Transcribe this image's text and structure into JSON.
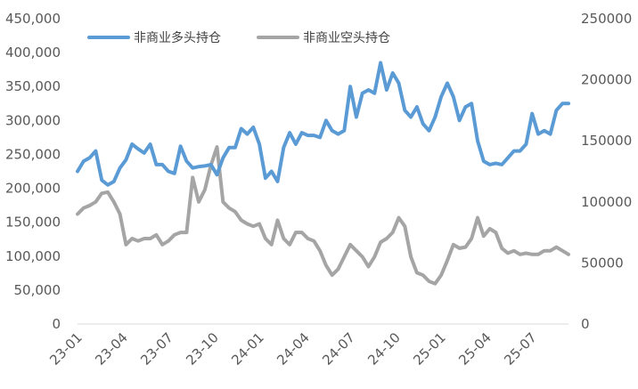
{
  "chart_data": {
    "type": "line",
    "title": "",
    "xlabel": "",
    "ylabel": "",
    "x_tick_labels": [
      "23-01",
      "23-04",
      "23-07",
      "23-10",
      "24-01",
      "24-04",
      "24-07",
      "24-10",
      "25-01",
      "25-04",
      "25-07"
    ],
    "y_left": {
      "range": [
        0,
        450000
      ],
      "ticks": [
        "0",
        "50,000",
        "100,000",
        "150,000",
        "200,000",
        "250,000",
        "300,000",
        "350,000",
        "400,000",
        "450,000"
      ]
    },
    "y_right": {
      "range": [
        0,
        250000
      ],
      "ticks": [
        "0",
        "50000",
        "100000",
        "150000",
        "200000",
        "250000"
      ]
    },
    "grid": false,
    "legend_position": "top-left",
    "series": [
      {
        "name": "非商业多头持仓",
        "axis": "left",
        "color": "#5B9BD5",
        "points": [
          [
            0,
            225000
          ],
          [
            1,
            240000
          ],
          [
            2,
            245000
          ],
          [
            3,
            255000
          ],
          [
            4,
            212000
          ],
          [
            5,
            205000
          ],
          [
            6,
            210000
          ],
          [
            7,
            230000
          ],
          [
            8,
            242000
          ],
          [
            9,
            265000
          ],
          [
            10,
            258000
          ],
          [
            11,
            252000
          ],
          [
            12,
            265000
          ],
          [
            13,
            235000
          ],
          [
            14,
            235000
          ],
          [
            15,
            225000
          ],
          [
            16,
            222000
          ],
          [
            17,
            262000
          ],
          [
            18,
            240000
          ],
          [
            19,
            230000
          ],
          [
            20,
            232000
          ],
          [
            21,
            233000
          ],
          [
            22,
            235000
          ],
          [
            23,
            220000
          ],
          [
            24,
            245000
          ],
          [
            25,
            260000
          ],
          [
            26,
            260000
          ],
          [
            27,
            288000
          ],
          [
            28,
            280000
          ],
          [
            29,
            290000
          ],
          [
            30,
            265000
          ],
          [
            31,
            215000
          ],
          [
            32,
            225000
          ],
          [
            33,
            210000
          ],
          [
            34,
            260000
          ],
          [
            35,
            282000
          ],
          [
            36,
            265000
          ],
          [
            37,
            282000
          ],
          [
            38,
            278000
          ],
          [
            39,
            278000
          ],
          [
            40,
            275000
          ],
          [
            41,
            300000
          ],
          [
            42,
            285000
          ],
          [
            43,
            280000
          ],
          [
            44,
            285000
          ],
          [
            45,
            350000
          ],
          [
            46,
            305000
          ],
          [
            47,
            340000
          ],
          [
            48,
            345000
          ],
          [
            49,
            340000
          ],
          [
            50,
            385000
          ],
          [
            51,
            345000
          ],
          [
            52,
            370000
          ],
          [
            53,
            355000
          ],
          [
            54,
            315000
          ],
          [
            55,
            305000
          ],
          [
            56,
            320000
          ],
          [
            57,
            295000
          ],
          [
            58,
            285000
          ],
          [
            59,
            305000
          ],
          [
            60,
            335000
          ],
          [
            61,
            355000
          ],
          [
            62,
            335000
          ],
          [
            63,
            300000
          ],
          [
            64,
            320000
          ],
          [
            65,
            325000
          ],
          [
            66,
            270000
          ],
          [
            67,
            240000
          ],
          [
            68,
            235000
          ],
          [
            69,
            237000
          ],
          [
            70,
            235000
          ],
          [
            71,
            245000
          ],
          [
            72,
            255000
          ],
          [
            73,
            255000
          ],
          [
            74,
            265000
          ],
          [
            75,
            310000
          ],
          [
            76,
            280000
          ],
          [
            77,
            285000
          ],
          [
            78,
            280000
          ],
          [
            79,
            315000
          ],
          [
            80,
            325000
          ],
          [
            81,
            325000
          ]
        ]
      },
      {
        "name": "非商业空头持仓",
        "axis": "right",
        "color": "#A5A5A5",
        "points": [
          [
            0,
            90000
          ],
          [
            1,
            95000
          ],
          [
            2,
            97000
          ],
          [
            3,
            100000
          ],
          [
            4,
            107000
          ],
          [
            5,
            108000
          ],
          [
            6,
            100000
          ],
          [
            7,
            90000
          ],
          [
            8,
            65000
          ],
          [
            9,
            70000
          ],
          [
            10,
            68000
          ],
          [
            11,
            70000
          ],
          [
            12,
            70000
          ],
          [
            13,
            73000
          ],
          [
            14,
            65000
          ],
          [
            15,
            68000
          ],
          [
            16,
            73000
          ],
          [
            17,
            75000
          ],
          [
            18,
            75000
          ],
          [
            19,
            120000
          ],
          [
            20,
            100000
          ],
          [
            21,
            110000
          ],
          [
            22,
            130000
          ],
          [
            23,
            145000
          ],
          [
            24,
            100000
          ],
          [
            25,
            95000
          ],
          [
            26,
            92000
          ],
          [
            27,
            85000
          ],
          [
            28,
            82000
          ],
          [
            29,
            80000
          ],
          [
            30,
            82000
          ],
          [
            31,
            70000
          ],
          [
            32,
            65000
          ],
          [
            33,
            85000
          ],
          [
            34,
            70000
          ],
          [
            35,
            65000
          ],
          [
            36,
            75000
          ],
          [
            37,
            75000
          ],
          [
            38,
            70000
          ],
          [
            39,
            68000
          ],
          [
            40,
            60000
          ],
          [
            41,
            48000
          ],
          [
            42,
            40000
          ],
          [
            43,
            45000
          ],
          [
            44,
            55000
          ],
          [
            45,
            65000
          ],
          [
            46,
            60000
          ],
          [
            47,
            55000
          ],
          [
            48,
            47000
          ],
          [
            49,
            55000
          ],
          [
            50,
            67000
          ],
          [
            51,
            70000
          ],
          [
            52,
            75000
          ],
          [
            53,
            87000
          ],
          [
            54,
            80000
          ],
          [
            55,
            55000
          ],
          [
            56,
            42000
          ],
          [
            57,
            40000
          ],
          [
            58,
            35000
          ],
          [
            59,
            33000
          ],
          [
            60,
            40000
          ],
          [
            61,
            52000
          ],
          [
            62,
            65000
          ],
          [
            63,
            62000
          ],
          [
            64,
            63000
          ],
          [
            65,
            70000
          ],
          [
            66,
            87000
          ],
          [
            67,
            72000
          ],
          [
            68,
            78000
          ],
          [
            69,
            75000
          ],
          [
            70,
            62000
          ],
          [
            71,
            58000
          ],
          [
            72,
            60000
          ],
          [
            73,
            57000
          ],
          [
            74,
            58000
          ],
          [
            75,
            57000
          ],
          [
            76,
            57000
          ],
          [
            77,
            60000
          ],
          [
            78,
            60000
          ],
          [
            79,
            63000
          ],
          [
            80,
            60000
          ],
          [
            81,
            57000
          ]
        ]
      }
    ]
  }
}
